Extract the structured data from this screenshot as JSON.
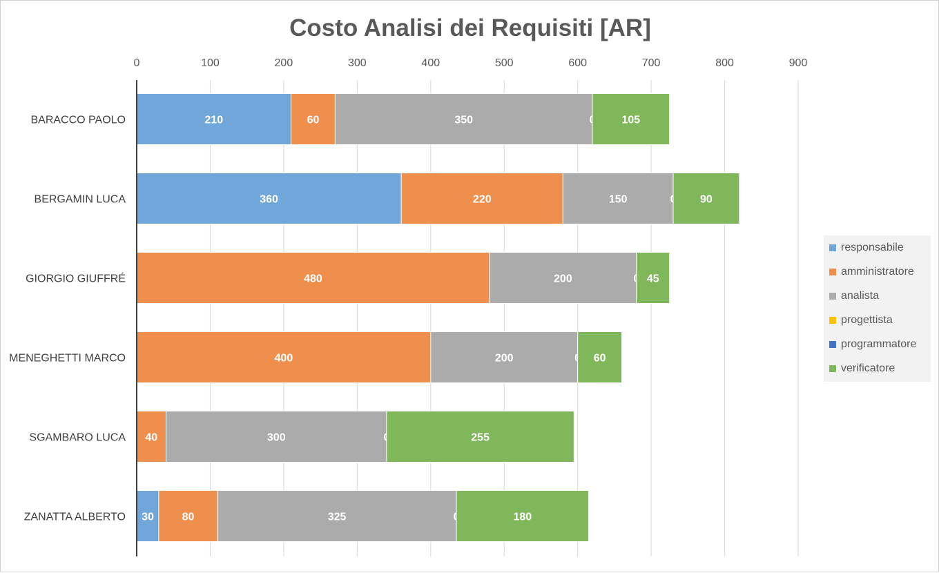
{
  "chart_data": {
    "type": "bar",
    "orientation": "horizontal",
    "stacked": true,
    "title": "Costo Analisi dei Requisiti [AR]",
    "xlim": [
      0,
      900
    ],
    "xticks": [
      "0",
      "100",
      "200",
      "300",
      "400",
      "500",
      "600",
      "700",
      "800",
      "900"
    ],
    "grid": true,
    "legend_position": "right",
    "categories": [
      "BARACCO PAOLO",
      "BERGAMIN LUCA",
      "GIORGIO GIUFFRÉ",
      "MENEGHETTI MARCO",
      "SGAMBARO LUCA",
      "ZANATTA ALBERTO"
    ],
    "series": [
      {
        "name": "responsabile",
        "color": "#70a6d9",
        "values": [
          210,
          360,
          0,
          0,
          0,
          30
        ]
      },
      {
        "name": "amministratore",
        "color": "#ef8f4e",
        "values": [
          60,
          220,
          480,
          400,
          40,
          80
        ]
      },
      {
        "name": "analista",
        "color": "#ababab",
        "values": [
          350,
          150,
          200,
          200,
          300,
          325
        ]
      },
      {
        "name": "progettista",
        "color": "#ffc000",
        "values": [
          0,
          0,
          0,
          0,
          0,
          0
        ]
      },
      {
        "name": "programmatore",
        "color": "#4472c4",
        "values": [
          0,
          0,
          0,
          0,
          0,
          0
        ]
      },
      {
        "name": "verificatore",
        "color": "#7fb75a",
        "values": [
          105,
          90,
          45,
          60,
          255,
          180
        ]
      }
    ],
    "data_labels": [
      [
        "210",
        "60",
        "350",
        "0",
        "105"
      ],
      [
        "360",
        "220",
        "150",
        "0",
        "90"
      ],
      [
        "0",
        "480",
        "200",
        "0",
        "45"
      ],
      [
        "0",
        "400",
        "200",
        "0",
        "60"
      ],
      [
        "0",
        "40",
        "300",
        "0",
        "255"
      ],
      [
        "30",
        "80",
        "325",
        "0",
        "180"
      ]
    ]
  }
}
